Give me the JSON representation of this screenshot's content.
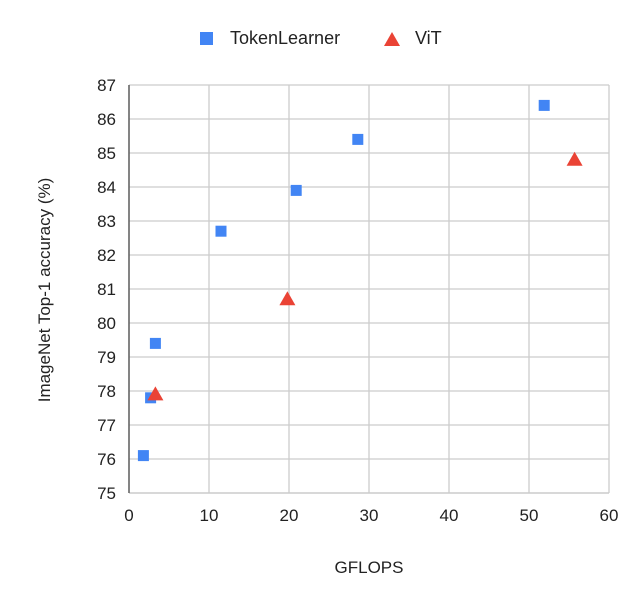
{
  "chart_data": {
    "type": "scatter",
    "title": "",
    "xlabel": "GFLOPS",
    "ylabel": "ImageNet Top-1 accuracy (%)",
    "xlim": [
      0,
      60
    ],
    "ylim": [
      75,
      87
    ],
    "xticks": [
      0,
      10,
      20,
      30,
      40,
      50,
      60
    ],
    "yticks": [
      75,
      76,
      77,
      78,
      79,
      80,
      81,
      82,
      83,
      84,
      85,
      86,
      87
    ],
    "grid": true,
    "legend_position": "top",
    "series": [
      {
        "name": "TokenLearner",
        "marker": "square",
        "color": "#4285f4",
        "points": [
          {
            "x": 1.8,
            "y": 76.1
          },
          {
            "x": 2.7,
            "y": 77.8
          },
          {
            "x": 3.3,
            "y": 79.4
          },
          {
            "x": 11.5,
            "y": 82.7
          },
          {
            "x": 20.9,
            "y": 83.9
          },
          {
            "x": 28.6,
            "y": 85.4
          },
          {
            "x": 51.9,
            "y": 86.4
          }
        ]
      },
      {
        "name": "ViT",
        "marker": "triangle",
        "color": "#ea4335",
        "points": [
          {
            "x": 3.3,
            "y": 77.9
          },
          {
            "x": 19.8,
            "y": 80.7
          },
          {
            "x": 55.7,
            "y": 84.8
          }
        ]
      }
    ]
  },
  "legend": {
    "items": [
      {
        "label": "TokenLearner"
      },
      {
        "label": "ViT"
      }
    ]
  },
  "axes": {
    "xlabel": "GFLOPS",
    "ylabel": "ImageNet Top-1 accuracy (%)"
  }
}
